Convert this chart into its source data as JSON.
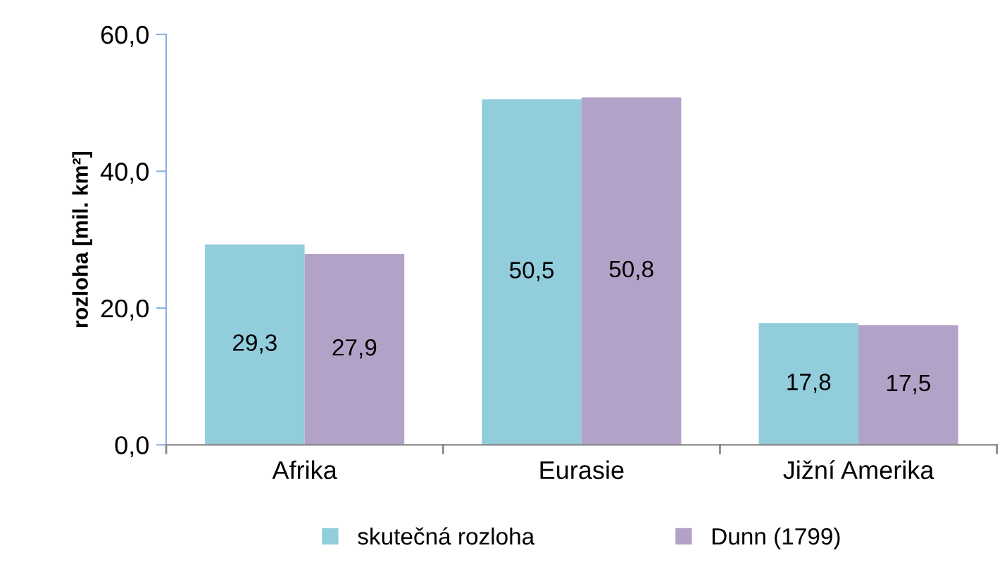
{
  "chart_data": {
    "type": "bar",
    "ylabel": "rozloha [mil. km²]",
    "categories": [
      "Afrika",
      "Eurasie",
      "Jižní Amerika"
    ],
    "series": [
      {
        "name": "skutečná rozloha",
        "color": "#92cddc",
        "values": [
          29.3,
          50.5,
          17.8
        ],
        "value_labels": [
          "29,3",
          "50,5",
          "17,8"
        ]
      },
      {
        "name": "Dunn (1799)",
        "color": "#b3a2c7",
        "values": [
          27.9,
          50.8,
          17.5
        ],
        "value_labels": [
          "27,9",
          "50,8",
          "17,5"
        ]
      }
    ],
    "ylim": [
      0,
      60
    ],
    "yticks": [
      {
        "value": 0,
        "label": "0,0"
      },
      {
        "value": 20,
        "label": "20,0"
      },
      {
        "value": 40,
        "label": "40,0"
      },
      {
        "value": 60,
        "label": "60,0"
      }
    ],
    "grid": false,
    "legend": "bottom"
  }
}
